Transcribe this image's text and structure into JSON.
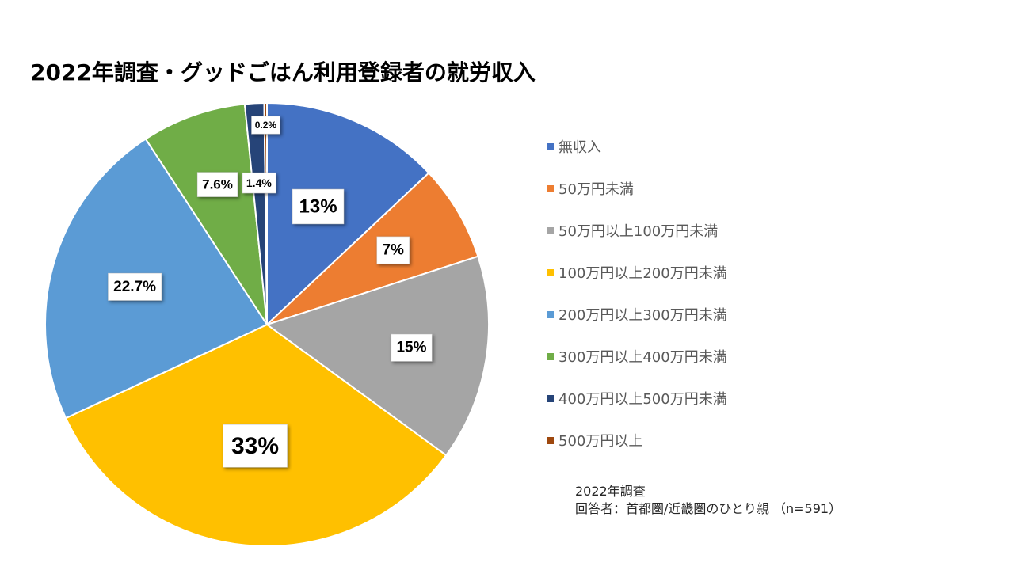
{
  "chart_data": {
    "type": "pie",
    "title": "2022年調査・グッドごはん利用登録者の就労収入",
    "categories": [
      "無収入",
      "50万円未満",
      "50万円以上100万円未満",
      "100万円以上200万円未満",
      "200万円以上300万円未満",
      "300万円以上400万円未満",
      "400万円以上500万円未満",
      "500万円以上"
    ],
    "values": [
      13,
      7,
      15,
      33,
      22.7,
      7.6,
      1.4,
      0.2
    ],
    "data_labels": [
      "13%",
      "7%",
      "15%",
      "33%",
      "22.7%",
      "7.6%",
      "1.4%",
      "0.2%"
    ],
    "colors": [
      "#4472C4",
      "#ED7D31",
      "#A5A5A5",
      "#FFC000",
      "#5B9BD5",
      "#70AD47",
      "#264478",
      "#9E480E"
    ],
    "legend_position": "right",
    "start_angle": "top, clockwise"
  },
  "notes": {
    "line1": "2022年調査",
    "line2": "回答者：首都圏/近畿圏のひとり親 （n=591）"
  }
}
